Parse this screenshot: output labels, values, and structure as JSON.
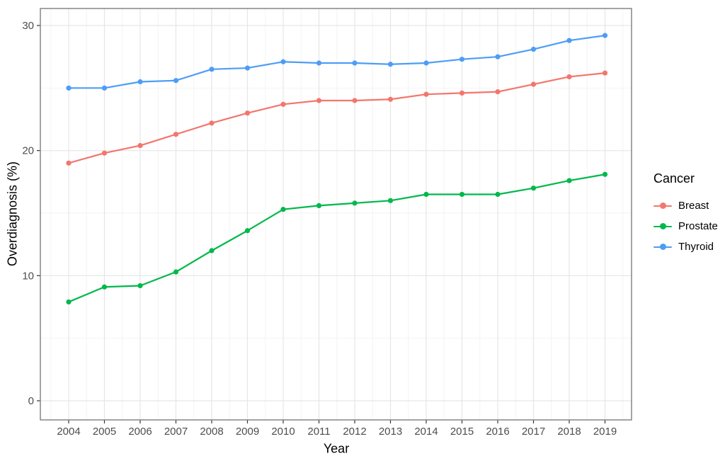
{
  "chart_data": {
    "type": "line",
    "title": "",
    "xlabel": "Year",
    "ylabel": "Overdiagnosis (%)",
    "legend_title": "Cancer",
    "legend_position": "right",
    "x": [
      2004,
      2005,
      2006,
      2007,
      2008,
      2009,
      2010,
      2011,
      2012,
      2013,
      2014,
      2015,
      2016,
      2017,
      2018,
      2019
    ],
    "yticks": [
      0,
      10,
      20,
      30
    ],
    "yticks_minor": [
      5,
      15,
      25
    ],
    "ylim": [
      -1.5,
      31.4
    ],
    "grid": "major and minor horizontal+vertical gridlines, light gray on white panel, gray panel border",
    "series": [
      {
        "name": "Breast",
        "color": "#F3766C",
        "values": [
          19.0,
          19.8,
          20.4,
          21.3,
          22.2,
          23.0,
          23.7,
          24.0,
          24.0,
          24.1,
          24.5,
          24.6,
          24.7,
          25.3,
          25.9,
          26.2
        ]
      },
      {
        "name": "Prostate",
        "color": "#00B84C",
        "values": [
          7.9,
          9.1,
          9.2,
          10.3,
          12.0,
          13.6,
          15.3,
          15.6,
          15.8,
          16.0,
          16.5,
          16.5,
          16.5,
          17.0,
          17.6,
          18.1
        ]
      },
      {
        "name": "Thyroid",
        "color": "#4D9DF6",
        "values": [
          25.0,
          25.0,
          25.5,
          25.6,
          26.5,
          26.6,
          27.1,
          27.0,
          27.0,
          26.9,
          27.0,
          27.3,
          27.5,
          28.1,
          28.8,
          29.2
        ]
      }
    ]
  },
  "palette": {
    "panel_background": "#ffffff",
    "panel_border": "#7e7e7e",
    "grid_major": "#e6e6e6",
    "grid_minor": "#f2f2f2",
    "tick_mark": "#333333",
    "tick_text": "#4d4d4d",
    "axis_title_text": "#000000"
  }
}
